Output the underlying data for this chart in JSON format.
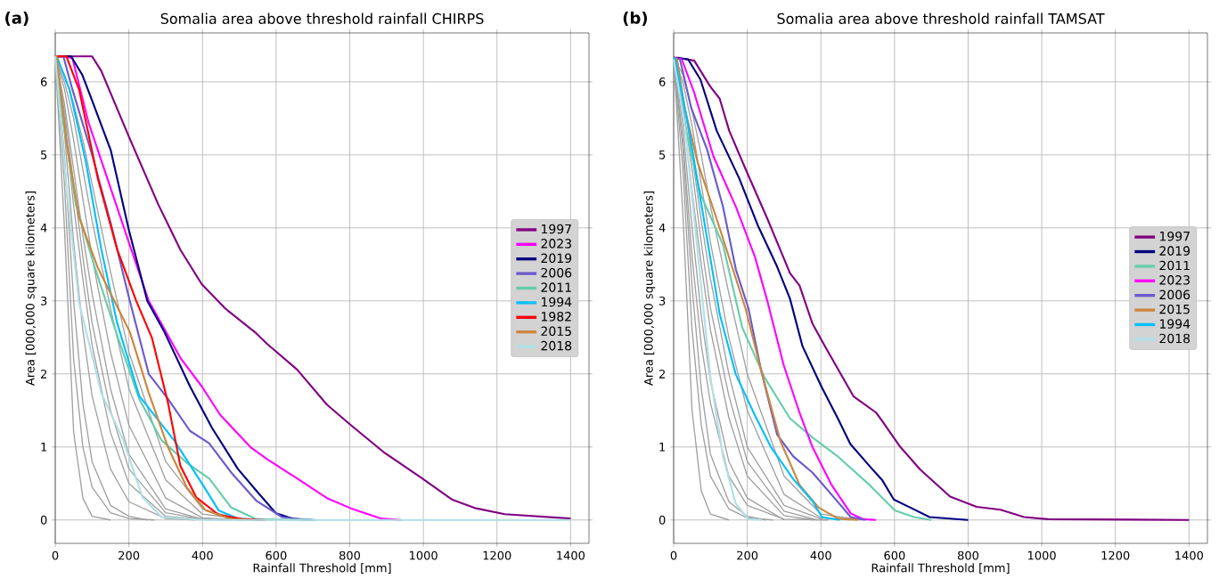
{
  "chart_data": [
    {
      "type": "line",
      "title": "Somalia area above threshold rainfall CHIRPS",
      "xlabel": "Rainfall Threshold [mm]",
      "ylabel": "Area [000,000 square kilometers]",
      "annotations": [
        "(a)"
      ],
      "xlim": [
        0,
        1450
      ],
      "ylim": [
        -0.32,
        6.67
      ],
      "xticks": [
        0,
        200,
        400,
        600,
        800,
        1000,
        1200,
        1400
      ],
      "yticks": [
        0,
        1,
        2,
        3,
        4,
        5,
        6
      ],
      "grid": true,
      "legend": "right",
      "series": [
        {
          "color": "#a0a0a0",
          "x": [
            0,
            25,
            50,
            75,
            100,
            150
          ],
          "values": [
            6.35,
            4.0,
            1.2,
            0.3,
            0.05,
            0
          ]
        },
        {
          "color": "#a0a0a0",
          "x": [
            0,
            25,
            50,
            75,
            100,
            150,
            200,
            250
          ],
          "values": [
            6.35,
            5.0,
            3.0,
            1.6,
            0.8,
            0.2,
            0.05,
            0
          ]
        },
        {
          "color": "#a0a0a0",
          "x": [
            0,
            25,
            50,
            75,
            100,
            150,
            200,
            300,
            380
          ],
          "values": [
            6.35,
            5.3,
            3.8,
            2.6,
            1.7,
            0.7,
            0.25,
            0.02,
            0
          ]
        },
        {
          "color": "#a0a0a0",
          "x": [
            0,
            25,
            50,
            75,
            100,
            150,
            200,
            300,
            420
          ],
          "values": [
            6.35,
            5.5,
            4.3,
            3.3,
            2.4,
            1.2,
            0.5,
            0.05,
            0
          ]
        },
        {
          "color": "#a0a0a0",
          "x": [
            0,
            25,
            50,
            75,
            100,
            150,
            200,
            300,
            400,
            480
          ],
          "values": [
            6.35,
            5.7,
            4.8,
            3.9,
            3.1,
            1.8,
            0.9,
            0.15,
            0.01,
            0
          ]
        },
        {
          "color": "#a0a0a0",
          "x": [
            0,
            25,
            50,
            75,
            100,
            150,
            200,
            300,
            400,
            510
          ],
          "values": [
            6.35,
            5.9,
            5.2,
            4.4,
            3.6,
            2.3,
            1.3,
            0.3,
            0.03,
            0
          ]
        },
        {
          "color": "#a0a0a0",
          "x": [
            0,
            25,
            50,
            75,
            100,
            150,
            200,
            300,
            400,
            530
          ],
          "values": [
            6.35,
            6.0,
            5.5,
            4.8,
            4.1,
            2.9,
            1.8,
            0.55,
            0.08,
            0
          ]
        },
        {
          "color": "#a0a0a0",
          "x": [
            0,
            25,
            50,
            75,
            100,
            150,
            200,
            300,
            400,
            500,
            600
          ],
          "values": [
            6.35,
            6.1,
            5.7,
            5.2,
            4.6,
            3.4,
            2.3,
            0.8,
            0.15,
            0.01,
            0
          ]
        },
        {
          "color": "#a0a0a0",
          "x": [
            0,
            25,
            50,
            75,
            100,
            150,
            200,
            270
          ],
          "values": [
            6.35,
            4.6,
            2.2,
            1.0,
            0.45,
            0.1,
            0.02,
            0
          ]
        },
        {
          "color": "#a0a0a0",
          "x": [
            0,
            25,
            50,
            75,
            100,
            150,
            200,
            300,
            400,
            460
          ],
          "values": [
            6.35,
            5.6,
            4.6,
            3.6,
            2.7,
            1.5,
            0.7,
            0.1,
            0.01,
            0
          ]
        },
        {
          "name": "1997",
          "color": "#800080",
          "x": [
            0,
            100,
            125,
            200,
            280,
            340,
            398,
            461,
            543,
            576,
            657,
            738,
            803,
            892,
            997,
            1078,
            1143,
            1221,
            1400
          ],
          "values": [
            6.35,
            6.35,
            6.15,
            5.25,
            4.32,
            3.7,
            3.23,
            2.9,
            2.57,
            2.41,
            2.06,
            1.58,
            1.3,
            0.93,
            0.57,
            0.28,
            0.16,
            0.08,
            0.02
          ]
        },
        {
          "name": "2023",
          "color": "#ff00ff",
          "x": [
            0,
            30,
            47,
            90,
            142,
            200,
            254,
            340,
            398,
            448,
            530,
            576,
            657,
            738,
            803,
            884,
            940
          ],
          "values": [
            6.35,
            6.35,
            6.32,
            5.45,
            4.67,
            3.8,
            3.0,
            2.22,
            1.83,
            1.44,
            1.0,
            0.83,
            0.57,
            0.3,
            0.16,
            0.02,
            0
          ]
        },
        {
          "name": "2019",
          "color": "#000080",
          "x": [
            0,
            43,
            73,
            99,
            151,
            200,
            250,
            297,
            366,
            426,
            496,
            548,
            600,
            651,
            700
          ],
          "values": [
            6.35,
            6.35,
            6.1,
            5.76,
            5.06,
            3.97,
            3.0,
            2.57,
            1.83,
            1.26,
            0.7,
            0.39,
            0.09,
            0.01,
            0
          ]
        },
        {
          "name": "2006",
          "color": "#6a5acd",
          "x": [
            0,
            22,
            47,
            99,
            151,
            200,
            254,
            306,
            366,
            418,
            478,
            547,
            616,
            690
          ],
          "values": [
            6.35,
            6.35,
            5.89,
            5.02,
            4.06,
            3.05,
            2.0,
            1.66,
            1.22,
            1.05,
            0.65,
            0.26,
            0.04,
            0
          ]
        },
        {
          "name": "2011",
          "color": "#66cdaa",
          "x": [
            0,
            22,
            56,
            108,
            168,
            228,
            289,
            358,
            418,
            478,
            547,
            710
          ],
          "values": [
            6.35,
            5.45,
            4.32,
            3.45,
            2.53,
            1.66,
            1.09,
            0.78,
            0.57,
            0.17,
            0.01,
            0
          ]
        },
        {
          "name": "1994",
          "color": "#00bfff",
          "x": [
            0,
            4,
            39,
            82,
            125,
            168,
            228,
            323,
            401,
            444,
            496,
            560
          ],
          "values": [
            6.35,
            6.35,
            5.89,
            4.93,
            3.71,
            2.7,
            1.7,
            1.09,
            0.48,
            0.13,
            0.02,
            0
          ]
        },
        {
          "name": "1982",
          "color": "#ff0000",
          "x": [
            0,
            30,
            65,
            116,
            168,
            220,
            263,
            306,
            340,
            383,
            444,
            513,
            570
          ],
          "values": [
            6.35,
            6.35,
            5.89,
            4.67,
            3.71,
            3.0,
            2.49,
            1.61,
            0.74,
            0.31,
            0.07,
            0.01,
            0
          ]
        },
        {
          "name": "2015",
          "color": "#cd853f",
          "x": [
            0,
            4,
            30,
            65,
            116,
            203,
            254,
            306,
            358,
            409,
            478,
            520
          ],
          "values": [
            6.35,
            6.35,
            5.19,
            4.14,
            3.45,
            2.57,
            1.74,
            1.0,
            0.44,
            0.13,
            0.01,
            0
          ]
        },
        {
          "name": "2018",
          "color": "#b0e0e6",
          "x": [
            0,
            30,
            65,
            125,
            185,
            237,
            289,
            400,
            1400
          ],
          "values": [
            6.35,
            4.58,
            2.97,
            1.74,
            1.09,
            0.31,
            0.04,
            0,
            0
          ]
        }
      ]
    },
    {
      "type": "line",
      "title": "Somalia area above threshold rainfall TAMSAT",
      "xlabel": "Rainfall Threshold [mm]",
      "ylabel": "Area [000,000 square kilometers]",
      "annotations": [
        "(b)"
      ],
      "xlim": [
        0,
        1450
      ],
      "ylim": [
        -0.32,
        6.67
      ],
      "xticks": [
        0,
        200,
        400,
        600,
        800,
        1000,
        1200,
        1400
      ],
      "yticks": [
        0,
        1,
        2,
        3,
        4,
        5,
        6
      ],
      "grid": true,
      "legend": "right",
      "series": [
        {
          "color": "#a0a0a0",
          "x": [
            0,
            25,
            50,
            75,
            100,
            150
          ],
          "values": [
            6.33,
            4.2,
            1.5,
            0.4,
            0.08,
            0
          ]
        },
        {
          "color": "#a0a0a0",
          "x": [
            0,
            25,
            50,
            75,
            100,
            150,
            200,
            250
          ],
          "values": [
            6.33,
            5.1,
            3.2,
            1.8,
            0.9,
            0.25,
            0.05,
            0
          ]
        },
        {
          "color": "#a0a0a0",
          "x": [
            0,
            25,
            50,
            75,
            100,
            150,
            200,
            300
          ],
          "values": [
            6.33,
            5.4,
            4.0,
            2.8,
            1.9,
            0.8,
            0.3,
            0
          ]
        },
        {
          "color": "#a0a0a0",
          "x": [
            0,
            25,
            50,
            75,
            100,
            150,
            200,
            300,
            380
          ],
          "values": [
            6.33,
            5.6,
            4.5,
            3.5,
            2.6,
            1.4,
            0.6,
            0.06,
            0
          ]
        },
        {
          "color": "#a0a0a0",
          "x": [
            0,
            25,
            50,
            75,
            100,
            150,
            200,
            300,
            410
          ],
          "values": [
            6.33,
            5.8,
            5.0,
            4.1,
            3.3,
            2.0,
            1.0,
            0.2,
            0
          ]
        },
        {
          "color": "#a0a0a0",
          "x": [
            0,
            25,
            50,
            75,
            100,
            150,
            200,
            300,
            400,
            480
          ],
          "values": [
            6.33,
            6.0,
            5.4,
            4.6,
            3.8,
            2.5,
            1.5,
            0.35,
            0.03,
            0
          ]
        },
        {
          "color": "#a0a0a0",
          "x": [
            0,
            25,
            50,
            75,
            100,
            150,
            200,
            300,
            400,
            510
          ],
          "values": [
            6.33,
            6.1,
            5.6,
            5.0,
            4.3,
            3.1,
            2.0,
            0.6,
            0.08,
            0
          ]
        },
        {
          "color": "#a0a0a0",
          "x": [
            0,
            25,
            50,
            75,
            100,
            150,
            200,
            270
          ],
          "values": [
            6.33,
            4.8,
            2.6,
            1.3,
            0.6,
            0.15,
            0.03,
            0
          ]
        },
        {
          "color": "#a0a0a0",
          "x": [
            0,
            25,
            50,
            75,
            100,
            150,
            200,
            300,
            390
          ],
          "values": [
            6.33,
            5.7,
            4.8,
            3.8,
            2.9,
            1.7,
            0.8,
            0.12,
            0
          ]
        },
        {
          "color": "#a0a0a0",
          "x": [
            0,
            25,
            50,
            75,
            100,
            150,
            200,
            300,
            420
          ],
          "values": [
            6.33,
            5.2,
            3.6,
            2.4,
            1.6,
            0.6,
            0.2,
            0.01,
            0
          ]
        },
        {
          "name": "1997",
          "color": "#800080",
          "x": [
            0,
            13,
            56,
            99,
            125,
            151,
            195,
            255,
            316,
            342,
            377,
            411,
            489,
            550,
            566,
            614,
            670,
            751,
            823,
            888,
            952,
            1017,
            1400
          ],
          "values": [
            6.33,
            6.33,
            6.29,
            5.94,
            5.77,
            5.33,
            4.81,
            4.12,
            3.38,
            3.21,
            2.69,
            2.38,
            1.69,
            1.47,
            1.36,
            1.01,
            0.69,
            0.32,
            0.18,
            0.14,
            0.04,
            0.01,
            0
          ]
        },
        {
          "name": "2019",
          "color": "#000080",
          "x": [
            0,
            39,
            73,
            117,
            178,
            229,
            281,
            316,
            350,
            402,
            446,
            480,
            532,
            566,
            598,
            647,
            695,
            800
          ],
          "values": [
            6.33,
            6.31,
            6.03,
            5.33,
            4.68,
            4.03,
            3.47,
            3.03,
            2.38,
            1.82,
            1.39,
            1.04,
            0.74,
            0.55,
            0.28,
            0.16,
            0.04,
            0
          ]
        },
        {
          "name": "2011",
          "color": "#66cdaa",
          "x": [
            0,
            4,
            30,
            73,
            134,
            186,
            247,
            316,
            377,
            446,
            532,
            601,
            653,
            700
          ],
          "values": [
            6.33,
            6.31,
            5.42,
            4.46,
            3.77,
            2.64,
            1.95,
            1.39,
            1.13,
            0.87,
            0.48,
            0.13,
            0.04,
            0
          ]
        },
        {
          "name": "2023",
          "color": "#ff00ff",
          "x": [
            0,
            22,
            56,
            108,
            169,
            221,
            255,
            299,
            342,
            377,
            429,
            481,
            515,
            550
          ],
          "values": [
            6.33,
            6.31,
            5.85,
            4.98,
            4.29,
            3.6,
            2.99,
            2.12,
            1.47,
            1.0,
            0.48,
            0.09,
            0.01,
            0
          ]
        },
        {
          "name": "2006",
          "color": "#6a5acd",
          "x": [
            0,
            17,
            48,
            91,
            134,
            169,
            203,
            238,
            281,
            325,
            377,
            437,
            481,
            520
          ],
          "values": [
            6.33,
            6.31,
            5.64,
            5.07,
            4.29,
            3.43,
            2.9,
            2.04,
            1.17,
            0.87,
            0.65,
            0.3,
            0.04,
            0
          ]
        },
        {
          "name": "2015",
          "color": "#cd853f",
          "x": [
            0,
            9,
            30,
            65,
            117,
            195,
            238,
            290,
            342,
            394,
            446,
            500
          ],
          "values": [
            6.33,
            6.31,
            5.64,
            4.9,
            4.12,
            2.9,
            2.04,
            1.08,
            0.48,
            0.17,
            0.02,
            0
          ]
        },
        {
          "name": "1994",
          "color": "#00bfff",
          "x": [
            0,
            4,
            39,
            82,
            125,
            169,
            221,
            264,
            325,
            377,
            403,
            450
          ],
          "values": [
            6.33,
            6.31,
            5.42,
            4.12,
            2.82,
            1.99,
            1.43,
            1.0,
            0.56,
            0.26,
            0.04,
            0
          ]
        },
        {
          "name": "2018",
          "color": "#b0e0e6",
          "x": [
            0,
            30,
            65,
            100,
            134,
            169,
            203,
            240
          ],
          "values": [
            6.31,
            5.42,
            3.68,
            1.95,
            0.87,
            0.22,
            0.01,
            0
          ]
        }
      ]
    }
  ]
}
